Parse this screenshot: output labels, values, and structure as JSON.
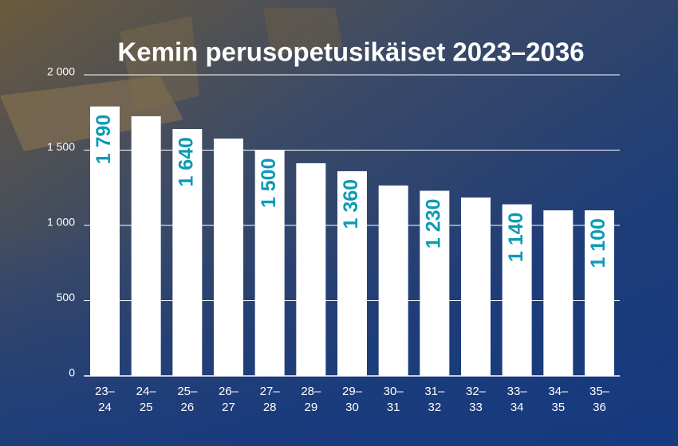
{
  "chart_data": {
    "type": "bar",
    "title": "Kemin perusopetusikäiset 2023–2036",
    "categories": [
      "23–24",
      "24–25",
      "25–26",
      "26–27",
      "27–28",
      "28–29",
      "29–30",
      "30–31",
      "31–32",
      "32–33",
      "33–34",
      "34–35",
      "35–36"
    ],
    "values": [
      1790,
      1725,
      1640,
      1577,
      1500,
      1413,
      1360,
      1265,
      1230,
      1185,
      1140,
      1100,
      1100
    ],
    "value_labels": [
      "1 790",
      null,
      "1 640",
      null,
      "1 500",
      null,
      "1 360",
      null,
      "1 230",
      null,
      "1 140",
      null,
      "1 100"
    ],
    "color": "#ffffff",
    "label_color": "#0a9bb5",
    "ylim": [
      0,
      2000
    ],
    "yticks": [
      0,
      500,
      {
        "value": 1000,
        "label": "1 000"
      },
      {
        "value": 1500,
        "label": "1 500"
      },
      {
        "value": 2000,
        "label": "2 000"
      }
    ],
    "grid": true
  }
}
